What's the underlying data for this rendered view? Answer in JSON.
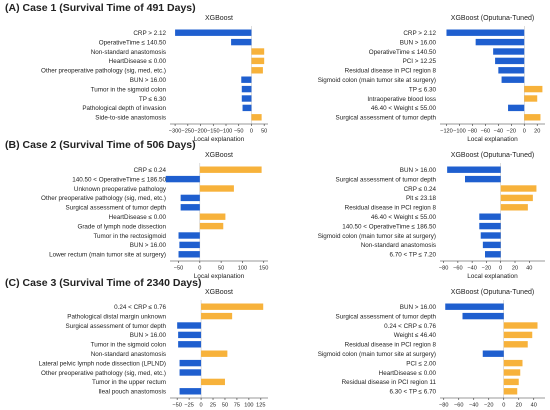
{
  "colors": {
    "positive": "#f7b23b",
    "negative": "#1f5fcf",
    "axis": "#333333"
  },
  "panels": [
    {
      "heading": "(A) Case 1 (Survival Time of 491 Days)"
    },
    {
      "heading": "(B) Case 2 (Survival Time of 506 Days)"
    },
    {
      "heading": "(C) Case 3 (Survival Time of 2340 Days)"
    }
  ],
  "chart_data": [
    {
      "type": "bar",
      "orientation": "horizontal",
      "title": "XGBoost",
      "xlabel": "Local explanation",
      "xlim": [
        -320,
        65
      ],
      "xticks": [
        -300,
        -250,
        -200,
        -150,
        -100,
        -50,
        0,
        50
      ],
      "categories": [
        "CRP > 2.12",
        "OperativeTime ≤ 140.50",
        "Non-standard anastomosis",
        "HeartDisease ≤ 0.00",
        "Other preoperative pathology (sig, med, etc.)",
        "BUN > 16.00",
        "Tumor in the sigmoid colon",
        "TP ≤ 6.30",
        "Pathological depth of invasion",
        "Side-to-side anastomosis"
      ],
      "values": [
        -300,
        -80,
        50,
        50,
        45,
        -40,
        -38,
        -38,
        -35,
        40
      ]
    },
    {
      "type": "bar",
      "orientation": "horizontal",
      "title": "XGBoost (Oputuna-Tuned)",
      "xlabel": "Local explanation",
      "xlim": [
        -130,
        32
      ],
      "xticks": [
        -120,
        -100,
        -80,
        -60,
        -40,
        -20,
        0,
        20
      ],
      "categories": [
        "CRP > 2.12",
        "BUN > 16.00",
        "OperativeTime ≤ 140.50",
        "PCI > 12.25",
        "Residual disease in PCI region 8",
        "Sigmoid colon (main tumor site at surgery)",
        "TP ≤ 6.30",
        "Intraoperative blood loss",
        "46.40 < Weight ≤ 55.00",
        "Surgical assessment of tumor depth"
      ],
      "values": [
        -120,
        -75,
        -48,
        -45,
        -40,
        -35,
        28,
        20,
        -25,
        25
      ]
    },
    {
      "type": "bar",
      "orientation": "horizontal",
      "title": "XGBoost",
      "xlabel": "Local explanation",
      "xlim": [
        -70,
        160
      ],
      "xticks": [
        -50,
        0,
        50,
        100,
        150
      ],
      "categories": [
        "CRP ≤ 0.24",
        "140.50 < OperativeTime ≤ 186.50",
        "Unknown preoperative pathology",
        "Other preoperative pathology (sig, med, etc.)",
        "Surgical assessment of tumor depth",
        "HeartDisease ≤ 0.00",
        "Grade of lymph node dissection",
        "Tumor in the rectosigmoid",
        "BUN > 16.00",
        "Lower rectum (main tumor site at surgery)"
      ],
      "values": [
        145,
        -80,
        80,
        -45,
        -45,
        60,
        55,
        -50,
        -48,
        -50
      ]
    },
    {
      "type": "bar",
      "orientation": "horizontal",
      "title": "XGBoost (Oputuna-Tuned)",
      "xlabel": "Local explanation",
      "xlim": [
        -85,
        62
      ],
      "xticks": [
        -80,
        -60,
        -40,
        -20,
        0,
        20,
        40
      ],
      "categories": [
        "BUN > 16.00",
        "Surgical assessment of tumor depth",
        "CRP ≤ 0.24",
        "Plt ≤ 23.18",
        "Residual disease in PCI region 8",
        "46.40 < Weight ≤ 55.00",
        "140.50 < OperativeTime ≤ 186.50",
        "Sigmoid colon (main tumor site at surgery)",
        "Non-standard anastomosis",
        "6.70 < TP ≤ 7.20"
      ],
      "values": [
        -75,
        -50,
        50,
        45,
        38,
        -30,
        -30,
        -28,
        -25,
        -22
      ]
    },
    {
      "type": "bar",
      "orientation": "horizontal",
      "title": "XGBoost",
      "xlabel": "Local explanation",
      "xlim": [
        -65,
        140
      ],
      "xticks": [
        -50,
        -25,
        0,
        25,
        50,
        75,
        100,
        125
      ],
      "categories": [
        "0.24 < CRP ≤ 0.76",
        "Pathological distal margin unknown",
        "Surgical assessment of tumor depth",
        "BUN > 16.00",
        "Tumor in the sigmoid colon",
        "Non-standard anastomosis",
        "Lateral pelvic lymph node dissection (LPLND)",
        "Other preoperative pathology (sig, med, etc.)",
        "Tumor in the upper rectum",
        "Ileal pouch anastomosis"
      ],
      "values": [
        130,
        65,
        -50,
        -48,
        -48,
        55,
        -45,
        -45,
        50,
        -45
      ]
    },
    {
      "type": "bar",
      "orientation": "horizontal",
      "title": "XGBoost (Oputuna-Tuned)",
      "xlabel": "Local explanation",
      "xlim": [
        -85,
        55
      ],
      "xticks": [
        -80,
        -60,
        -40,
        -20,
        0,
        20,
        40
      ],
      "categories": [
        "BUN > 16.00",
        "Surgical assessment of tumor depth",
        "0.24 < CRP ≤ 0.76",
        "Weight ≤ 46.40",
        "Residual disease in PCI region 8",
        "Sigmoid colon (main tumor site at surgery)",
        "PCI ≤ 2.00",
        "HeartDisease ≤ 0.00",
        "Residual disease in PCI region 11",
        "6.30 < TP ≤ 6.70"
      ],
      "values": [
        -78,
        -55,
        45,
        38,
        32,
        -28,
        25,
        22,
        20,
        18
      ]
    }
  ]
}
